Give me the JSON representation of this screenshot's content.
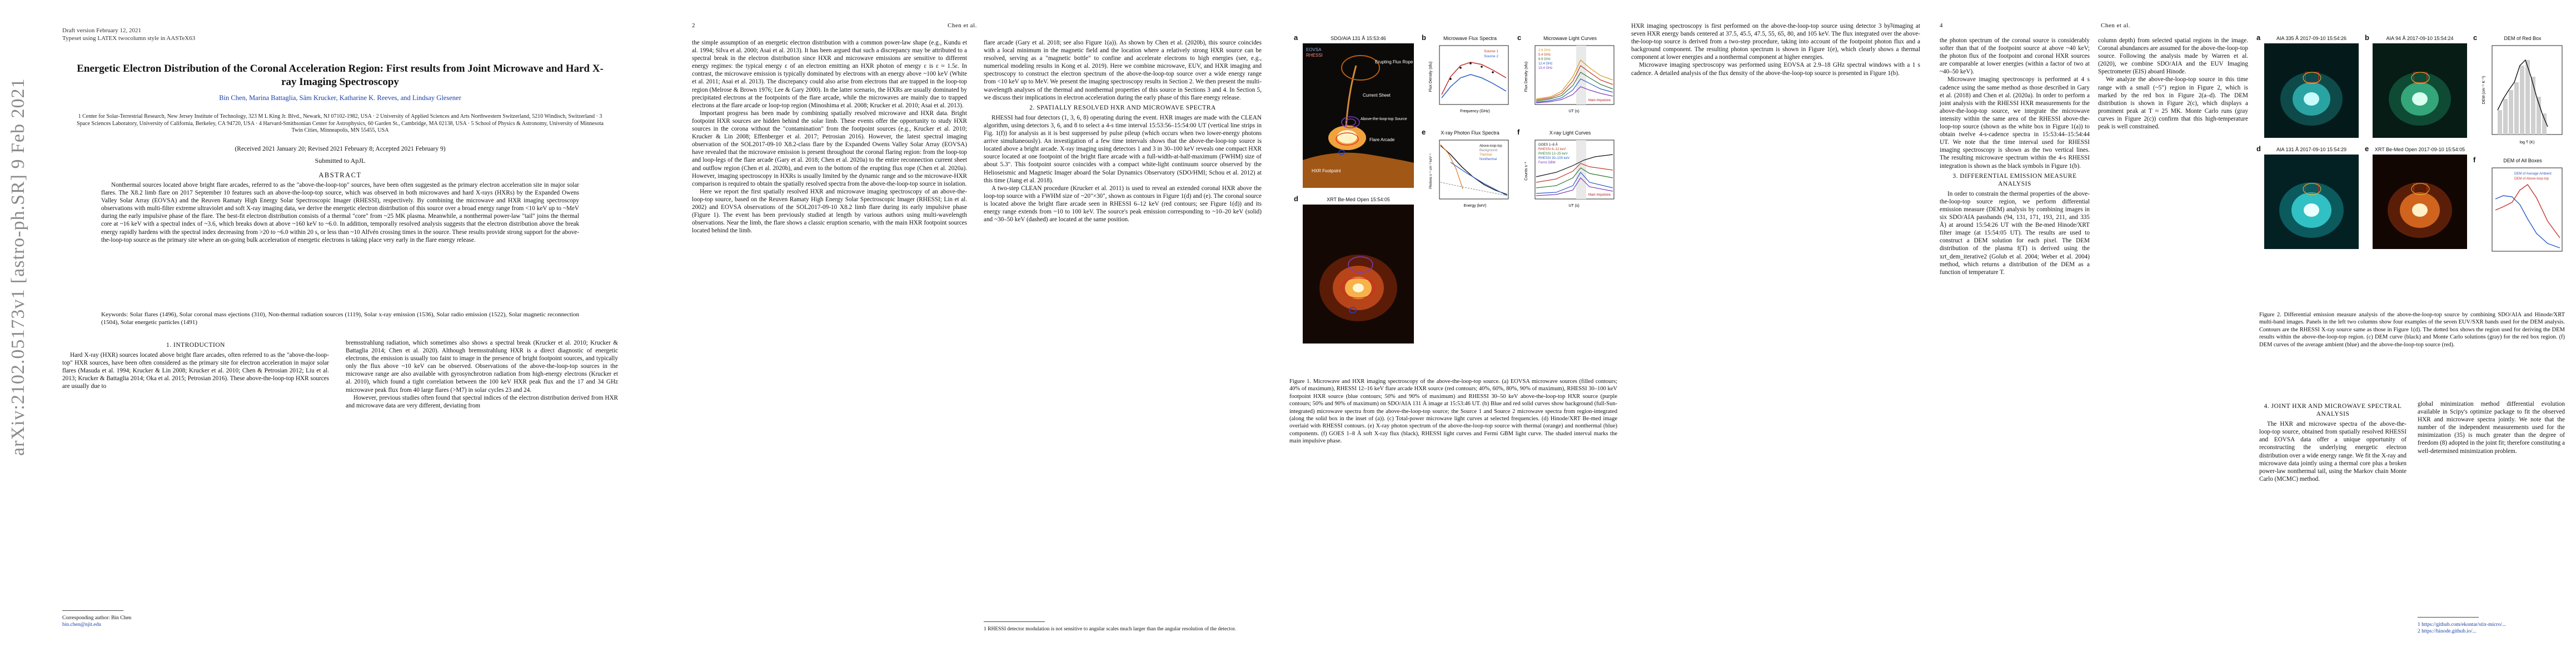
{
  "arxiv_stamp": "arXiv:2102.05173v1  [astro-ph.SR]  9 Feb 2021",
  "page1": {
    "draft_line1": "Draft version February 12, 2021",
    "draft_line2": "Typeset using LATEX twocolumn style in AASTeX63",
    "title": "Energetic Electron Distribution of the Coronal Acceleration Region: First results from Joint Microwave and Hard X-ray Imaging Spectroscopy",
    "authors": "Bin Chen, Marina Battaglia, Säm Krucker, Katharine K. Reeves, and Lindsay Glesener",
    "affiliations": "1 Center for Solar-Terrestrial Research, New Jersey Institute of Technology, 323 M L King Jr. Blvd., Newark, NJ 07102-1982, USA · 2 University of Applied Sciences and Arts Northwestern Switzerland, 5210 Windisch, Switzerland · 3 Space Sciences Laboratory, University of California, Berkeley, CA 94720, USA · 4 Harvard-Smithsonian Center for Astrophysics, 60 Garden St., Cambridge, MA 02138, USA · 5 School of Physics & Astronomy, University of Minnesota Twin Cities, Minneapolis, MN 55455, USA",
    "received": "(Received 2021 January 20; Revised 2021 February 8; Accepted 2021 February 9)",
    "submitted": "Submitted to ApJL",
    "abstract_heading": "ABSTRACT",
    "abstract": "Nonthermal sources located above bright flare arcades, referred to as the \"above-the-loop-top\" sources, have been often suggested as the primary electron acceleration site in major solar flares. The X8.2 limb flare on 2017 September 10 features such an above-the-loop-top source, which was observed in both microwaves and hard X-rays (HXRs) by the Expanded Owens Valley Solar Array (EOVSA) and the Reuven Ramaty High Energy Solar Spectroscopic Imager (RHESSI), respectively. By combining the microwave and HXR imaging spectroscopy observations with multi-filter extreme ultraviolet and soft X-ray imaging data, we derive the energetic electron distribution of this source over a broad energy range from <10 keV up to ~MeV during the early impulsive phase of the flare. The best-fit electron distribution consists of a thermal \"core\" from ~25 MK plasma. Meanwhile, a nonthermal power-law \"tail\" joins the thermal core at ~16 keV with a spectral index of ~3.6, which breaks down at above ~160 keV to ~6.0. In addition, temporally resolved analysis suggests that the electron distribution above the break energy rapidly hardens with the spectral index decreasing from >20 to ~6.0 within 20 s, or less than ~10 Alfvén crossing times in the source. These results provide strong support for the above-the-loop-top source as the primary site where an on-going bulk acceleration of energetic electrons is taking place very early in the flare energy release.",
    "keywords": "Keywords: Solar flares (1496), Solar coronal mass ejections (310), Non-thermal radiation sources (1119), Solar x-ray emission (1536), Solar radio emission (1522), Solar magnetic reconnection (1504), Solar energetic particles (1491)",
    "intro_heading": "1. INTRODUCTION",
    "intro_col1": "Hard X-ray (HXR) sources located above bright flare arcades, often referred to as the \"above-the-loop-top\" HXR sources, have been often considered as the primary site for electron acceleration in major solar flares (Masuda et al. 1994; Krucker & Lin 2008; Krucker et al. 2010; Chen & Petrosian 2012; Liu et al. 2013; Krucker & Battaglia 2014; Oka et al. 2015; Petrosian 2016). These above-the-loop-top HXR sources are usually due to",
    "intro_col2": "bremsstrahlung radiation, which sometimes also shows a spectral break (Krucker et al. 2010; Krucker & Battaglia 2014; Chen et al. 2020). Although bremsstrahlung HXR is a direct diagnostic of energetic electrons, the emission is usually too faint to image in the presence of bright footpoint sources, and typically only the flux above ~10 keV can be observed. Observations of the above-the-loop-top sources in the microwave range are also available with gyrosynchrotron radiation from high-energy electrons (Krucker et al. 2010), which found a tight correlation between the 100 keV HXR peak flux and the 17 and 34 GHz microwave peak flux from 40 large flares (>M7) in solar cycles 23 and 24.",
    "intro_col2b": "However, previous studies often found that spectral indices of the electron distribution derived from HXR and microwave data are very different, deviating from",
    "corresponding": "Corresponding author: Bin Chen",
    "email": "bin.chen@njit.edu"
  },
  "page2": {
    "page_number": "2",
    "running_head": "Chen et al.",
    "col1": "the simple assumption of an energetic electron distribution with a common power-law shape (e.g., Kundu et al. 1994; Silva et al. 2000; Asai et al. 2013). It has been argued that such a discrepancy may be attributed to a spectral break in the electron distribution since HXR and microwave emissions are sensitive to different energy regimes: the typical energy ε of an electron emitting an HXR photon of energy ε is ε ≈ 1.5ε. In contrast, the microwave emission is typically dominated by electrons with an energy above ~100 keV (White et al. 2011; Asai et al. 2013). The discrepancy could also arise from electrons that are trapped in the loop-top region (Melrose & Brown 1976; Lee & Gary 2000). In the latter scenario, the HXRs are usually dominated by precipitated electrons at the footpoints of the flare arcade, while the microwaves are mainly due to trapped electrons at the flare arcade or loop-top region (Minoshima et al. 2008; Krucker et al. 2010; Asai et al. 2013).",
    "col1b": "Important progress has been made by combining spatially resolved microwave and HXR data. Bright footpoint HXR sources are hidden behind the solar limb. These events offer the opportunity to study HXR sources in the corona without the \"contamination\" from the footpoint sources (e.g., Krucker et al. 2010; Krucker & Lin 2008; Effenberger et al. 2017; Petrosian 2016). However, the latest spectral imaging observation of the SOL2017-09-10 X8.2-class flare by the Expanded Owens Valley Solar Array (EOVSA) have revealed that the microwave emission is present throughout the coronal flaring region: from the loop-top and loop-legs of the flare arcade (Gary et al. 2018; Chen et al. 2020a) to the entire reconnection current sheet and outflow region (Chen et al. 2020b), and even to the bottom of the erupting flux rope (Chen et al. 2020a). However, imaging spectroscopy in HXRs is usually limited by the dynamic range and so the microwave-HXR comparison is required to obtain the spatially resolved spectra from the above-the-loop-top source in isolation.",
    "col1c": "Here we report the first spatially resolved HXR and microwave imaging spectroscopy of an above-the-loop-top source, based on the Reuven Ramaty High Energy Solar Spectroscopic Imager (RHESSI; Lin et al. 2002) and EOVSA observations of the SOL2017-09-10 X8.2 limb flare during its early impulsive phase (Figure 1). The event has been previously studied at length by various authors using multi-wavelength observations. Near the limb, the flare shows a classic eruption scenario, with the main HXR footpoint sources located behind the limb.",
    "col2": "flare arcade (Gary et al. 2018; see also Figure 1(a)). As shown by Chen et al. (2020b), this source coincides with a local minimum in the magnetic field and the location where a relatively strong HXR source can be resolved, serving as a \"magnetic bottle\" to confine and accelerate electrons to high energies (see, e.g., numerical modeling results in Kong et al. 2019). Here we combine microwave, EUV, and HXR imaging and spectroscopy to construct the electron spectrum of the above-the-loop-top source over a wide energy range from <10 keV up to MeV. We present the imaging spectroscopy results in Section 2. We then present the multi-wavelength analyses of the thermal and nonthermal properties of this source in Sections 3 and 4. In Section 5, we discuss their implications in electron acceleration during the early phase of this flare energy release.",
    "sec2_heading": "2. SPATIALLY RESOLVED HXR AND MICROWAVE SPECTRA",
    "sec2": "RHESSI had four detectors (1, 3, 6, 8) operating during the event. HXR images are made with the CLEAN algorithm, using detectors 3, 6, and 8 to select a 4-s time interval 15:53:56–15:54:00 UT (vertical line strips in Fig. 1(f)) for analysis as it is best suppressed by pulse pileup (which occurs when two lower-energy photons arrive simultaneously). An investigation of a few time intervals shows that the above-the-loop-top source is located above a bright arcade. X-ray imaging using detectors 1 and 3 in 30–100 keV reveals one compact HXR source located at one footpoint of the bright flare arcade with a full-width-at-half-maximum (FWHM) size of about 5.3\". This footpoint source coincides with a compact white-light continuum source observed by the Helioseismic and Magnetic Imager aboard the Solar Dynamics Observatory (SDO/HMI; Schou et al. 2012) at this time (Jiang et al. 2018).",
    "sec2b": "A two-step CLEAN procedure (Krucker et al. 2011) is used to reveal an extended coronal HXR above the loop-top source with a FWHM size of ~20\"×30\", shown as contours in Figure 1(d) and (e). The coronal source is located above the bright flare arcade seen in RHESSI 6–12 keV (red contours; see Figure 1(d)) and its energy range extends from ~10 to 100 keV. The source's peak emission corresponding to ~10–20 keV (solid) and ~30–50 keV (dashed) are located at the same position.",
    "footnote": "1 RHESSI detector modulation is not sensitive to angular scales much larger than the angular resolution of the detector."
  },
  "page3": {
    "page_number": "3",
    "figure": {
      "a": {
        "label": "a",
        "title": "SDO/AIA 131 Å 15:53:46",
        "ann_flux_rope": "Erupting Flux Rope",
        "ann_current_sheet": "Current Sheet",
        "ann_atlt": "Above-the-loop-top Source",
        "ann_arcade": "Flare Arcade",
        "ann_hxr_fp": "HXR Footpoint",
        "ann_eovsa": "EOVSA",
        "ann_rhessi": "RHESSI"
      },
      "b": {
        "label": "b",
        "title": "Microwave Flux Spectra",
        "xlabel": "Frequency (GHz)",
        "ylabel": "Flux Density (sfu)",
        "legend": [
          "Source 1",
          "Source 2"
        ]
      },
      "c": {
        "label": "c",
        "title": "Microwave Light Curves",
        "xlabel": "UT (s)",
        "ylabel": "Flux Density (sfu)",
        "legend": [
          "2.9 GHz",
          "5.4 GHz",
          "8.9 GHz",
          "12.4 GHz",
          "15.4 GHz"
        ],
        "ann": "Main Impulsive"
      },
      "d": {
        "label": "d",
        "title": "XRT Be-Med Open 15:54:05"
      },
      "e": {
        "label": "e",
        "title": "X-ray Photon Flux Spectra",
        "xlabel": "Energy (keV)",
        "ylabel": "Photons s⁻¹ cm⁻² keV⁻¹",
        "legend": [
          "Above-loop-top",
          "Background",
          "Thermal",
          "Nonthermal"
        ]
      },
      "f": {
        "label": "f",
        "title": "X-ray Light Curves",
        "xlabel": "UT (s)",
        "ylabel": "Counts s⁻¹",
        "legend": [
          "GOES 1–8 Å",
          "RHESSI 6–12 keV",
          "RHESSI 12–25 keV",
          "RHESSI 30–100 keV",
          "Fermi GBM"
        ],
        "ann": "Main Impulsive"
      }
    },
    "caption": "Figure 1. Microwave and HXR imaging spectroscopy of the above-the-loop-top source. (a) EOVSA microwave sources (filled contours; 40% of maximum), RHESSI 12–16 keV flare arcade HXR source (red contours; 40%, 60%, 80%, 90% of maximum), RHESSI 30–100 keV footpoint HXR source (blue contours; 50% and 90% of maximum) and RHESSI 30–50 keV above-the-loop-top HXR source (purple contours; 50% and 90% of maximum) on SDO/AIA 131 Å image at 15:53:46 UT. (b) Blue and red solid curves show background (full-Sun-integrated) microwave spectra from the above-the-loop-top source; the Source 1 and Source 2 microwave spectra from region-integrated (along the solid box in the inset of (a)). (c) Total-power microwave light curves at selected frequencies. (d) Hinode/XRT Be-med image overlaid with RHESSI contours. (e) X-ray photon spectrum of the above-the-loop-top source with thermal (orange) and nonthermal (blue) components. (f) GOES 1–8 Å soft X-ray flux (black), RHESSI light curves and Fermi GBM light curve. The shaded interval marks the main impulsive phase.",
    "col2": "HXR imaging spectroscopy is first performed on the above-the-loop-top source using detector 3 by imaging at seven HXR energy bands centered at 37.5, 45.5, 47.5, 55, 65, 80, and 105 keV. The flux integrated over the above-the-loop-top source is derived from a two-step procedure, taking into account of the footpoint photon flux and a background component. The resulting photon spectrum is shown in Figure 1(e), which clearly shows a thermal component at lower energies and a nonthermal component at higher energies.",
    "col2b": "Microwave imaging spectroscopy was performed using EOVSA at 2.9–18 GHz spectral windows with a 1 s cadence. A detailed analysis of the flux density of the above-the-loop-top source is presented in Figure 1(b)."
  },
  "page4": {
    "page_number": "4",
    "running_head": "Chen et al.",
    "col1": "the photon spectrum of the coronal source is considerably softer than that of the footpoint source at above ~40 keV; the photon flux of the footpoint and coronal HXR sources are comparable at lower energies (within a factor of two at ~40–50 keV).",
    "col1b": "Microwave imaging spectroscopy is performed at 4 s cadence using the same method as those described in Gary et al. (2018) and Chen et al. (2020a). In order to perform a joint analysis with the RHESSI HXR measurements for the above-the-loop-top source, we integrate the microwave intensity within the same area of the RHESSI above-the-loop-top source (shown as the white box in Figure 1(a)) to obtain twelve 4-s-cadence spectra in 15:53:44–15:54:44 UT. We note that the time interval used for RHESSI imaging spectroscopy is shown as the two vertical lines. The resulting microwave spectrum within the 4-s RHESSI integration is shown as the black symbols in Figure 1(b).",
    "sec3_heading": "3. DIFFERENTIAL EMISSION MEASURE ANALYSIS",
    "sec3": "In order to constrain the thermal properties of the above-the-loop-top source region, we perform differential emission measure (DEM) analysis by combining images in six SDO/AIA passbands (94, 131, 171, 193, 211, and 335 Å) at around 15:54:26 UT with the Be-med Hinode/XRT filter image (at 15:54:05 UT). The results are used to construct a DEM solution for each pixel. The DEM distribution of the plasma f(T) is derived using the xrt_dem_iterative2 (Golub et al. 2004; Weber et al. 2004) method, which returns a distribution of the DEM as a function of temperature T.",
    "col2": "column depth) from selected spatial regions in the image. Coronal abundances are assumed for the above-the-loop-top source. Following the analysis made by Warren et al. (2020), we combine SDO/AIA and the EUV Imaging Spectrometer (EIS) aboard Hinode.",
    "col2b": "We analyze the above-the-loop-top source in this time range with a small (~5\") region in Figure 2, which is marked by the red box in Figure 2(a–d). The DEM distribution is shown in Figure 2(c), which displays a prominent peak at T ≈ 25 MK. Monte Carlo runs (gray curves in Figure 2(c)) confirm that this high-temperature peak is well constrained.",
    "sec4_heading": "4. JOINT HXR AND MICROWAVE SPECTRAL ANALYSIS",
    "sec4": "The HXR and microwave spectra of the above-the-loop-top source, obtained from spatially resolved RHESSI and EOVSA data offer a unique opportunity of reconstructing the underlying energetic electron distribution over a wide energy range. We fit the X-ray and microwave data jointly using a thermal core plus a broken power-law nonthermal tail, using the Markov chain Monte Carlo (MCMC) method.",
    "figure": {
      "a": {
        "label": "a",
        "title": "AIA 335 Å 2017-09-10 15:54:26"
      },
      "b": {
        "label": "b",
        "title": "AIA 94 Å 2017-09-10 15:54:24"
      },
      "c": {
        "label": "c",
        "title": "DEM of Red Box",
        "xlabel": "log T (K)",
        "ylabel": "DEM (cm⁻⁵ K⁻¹)"
      },
      "d": {
        "label": "d",
        "title": "AIA 131 Å 2017-09-10 15:54:29"
      },
      "e": {
        "label": "e",
        "title": "XRT Be-Med Open 2017-09-10 15:54:05"
      },
      "f": {
        "label": "f",
        "title": "DEM of All Boxes",
        "legend": [
          "DEM of Average Ambient",
          "DEM of Above-loop-top"
        ]
      }
    },
    "caption": "Figure 2. Differential emission measure analysis of the above-the-loop-top source by combining SDO/AIA and Hinode/XRT multi-band images. Panels in the left two columns show four examples of the seven EUV/SXR bands used for the DEM analysis. Contours are the RHESSI X-ray source same as those in Figure 1(d). The dotted box shows the region used for deriving the DEM results within the above-the-loop-top region. (c) DEM curve (black) and Monte Carlo solutions (gray) for the red box region. (f) DEM curves of the average ambient (blue) and the above-the-loop-top source (red).",
    "col2c": "global minimization method differential evolution available in Scipy's optimize package to fit the observed HXR and microwave spectra jointly. We note that the number of the independent measurements used for the minimization (35) is much greater than the degree of freedom (8) adopted in the joint fit; therefore constituting a well-determined minimization problem.",
    "footnote1": "1 https://github.com/ekontar/stix-micro/...",
    "footnote2": "2 https://hinode.github.io/..."
  }
}
